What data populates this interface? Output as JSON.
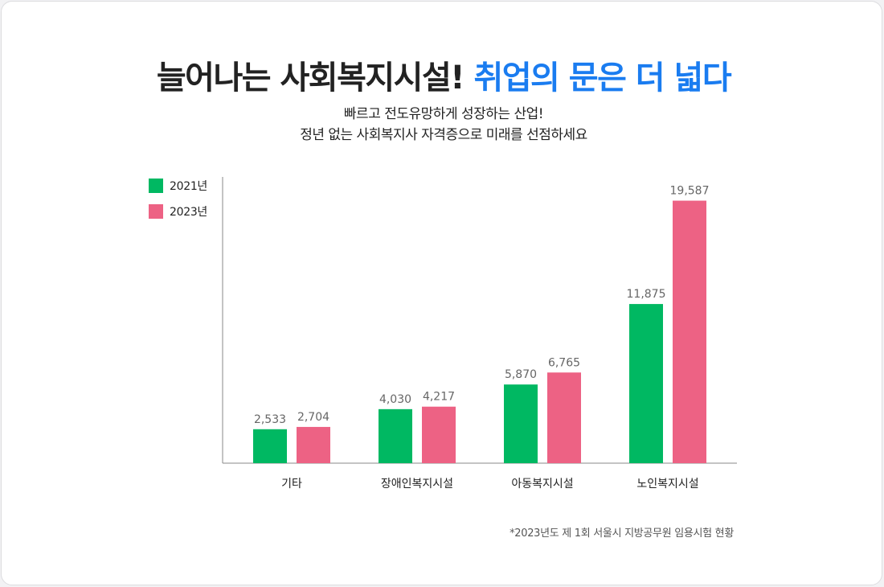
{
  "header": {
    "title_main": "늘어나는 사회복지시설!",
    "title_accent": "취업의 문은 더 넓다",
    "subtitle_line1": "빠르고 전도유망하게 성장하는 산업!",
    "subtitle_line2": "정년 없는 사회복지사 자격증으로 미래를 선점하세요"
  },
  "colors": {
    "accent": "#1a7cf0",
    "series_2021": "#00b862",
    "series_2023": "#ed6284"
  },
  "chart_data": {
    "type": "bar",
    "categories": [
      "기타",
      "장애인복지시설",
      "아동복지시설",
      "노인복지시설"
    ],
    "series": [
      {
        "name": "2021년",
        "values": [
          2533,
          4030,
          5870,
          11875
        ],
        "labels": [
          "2,533",
          "4,030",
          "5,870",
          "11,875"
        ]
      },
      {
        "name": "2023년",
        "values": [
          2704,
          4217,
          6765,
          19587
        ],
        "labels": [
          "2,704",
          "4,217",
          "6,765",
          "19,587"
        ]
      }
    ],
    "legend_position": "top-left",
    "grid": false,
    "ylim": [
      0,
      21000
    ],
    "note": "*2023년도 제 1회 서울시 지방공무원 임용시험 현황"
  }
}
